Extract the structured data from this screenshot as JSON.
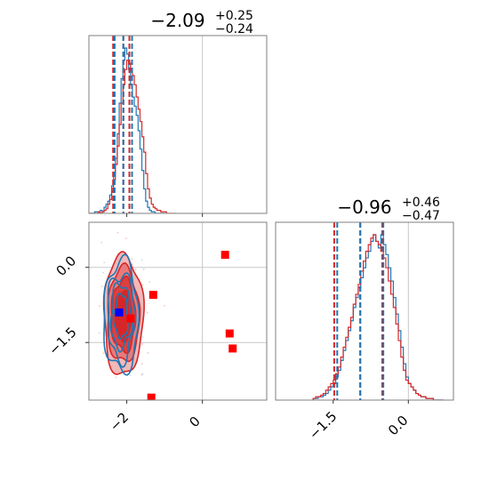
{
  "chart_data": {
    "type": "corner",
    "titles": [
      {
        "value": "−2.09",
        "plus": "+0.25",
        "minus": "−0.24"
      },
      {
        "value": "−0.96",
        "plus": "+0.46",
        "minus": "−0.47"
      }
    ],
    "series": [
      {
        "color": "#1f77b4"
      },
      {
        "color": "#d62728"
      }
    ],
    "param_ranges": [
      [
        -3.0,
        1.7
      ],
      [
        -2.65,
        0.9
      ]
    ],
    "ticks_p1": [
      {
        "value": -2,
        "label": "−2"
      },
      {
        "value": 0,
        "label": "0"
      }
    ],
    "ticks_p2": [
      {
        "value": -1.5,
        "label": "−1.5"
      },
      {
        "value": 0.0,
        "label": "0.0"
      }
    ],
    "grid": true,
    "hist_p1": {
      "bin_start": -3.0,
      "bin_width": 0.05,
      "blue": [
        0,
        0,
        0,
        1,
        1,
        0,
        2,
        1,
        4,
        6,
        8,
        12,
        18,
        26,
        36,
        52,
        72,
        88,
        100,
        108,
        104,
        94,
        84,
        76,
        70,
        64,
        54,
        42,
        28,
        16,
        8,
        4,
        2,
        1,
        1,
        0,
        0,
        0,
        0,
        0
      ],
      "red": [
        0,
        0,
        0,
        0,
        0,
        1,
        0,
        1,
        2,
        3,
        6,
        9,
        14,
        22,
        32,
        44,
        58,
        72,
        84,
        94,
        100,
        98,
        94,
        90,
        84,
        76,
        68,
        60,
        50,
        40,
        26,
        16,
        10,
        6,
        4,
        3,
        2,
        2,
        1,
        1,
        1,
        0,
        0,
        0,
        0,
        0
      ]
    },
    "quantiles_p1": {
      "blue": [
        -2.32,
        -2.09,
        -1.86
      ],
      "red": [
        -2.36,
        -2.09,
        -1.93
      ]
    },
    "hist_p2": {
      "bin_start": -1.9,
      "bin_width": 0.05,
      "blue": [
        1,
        1,
        2,
        2,
        3,
        4,
        6,
        8,
        10,
        14,
        18,
        24,
        30,
        36,
        42,
        48,
        56,
        62,
        68,
        74,
        80,
        86,
        90,
        96,
        100,
        96,
        92,
        100,
        94,
        88,
        80,
        72,
        62,
        52,
        42,
        32,
        22,
        14,
        10,
        8,
        6,
        4,
        3,
        2,
        2,
        1,
        1,
        1,
        0,
        0,
        0,
        0
      ],
      "red": [
        1,
        2,
        2,
        3,
        4,
        6,
        8,
        10,
        12,
        16,
        20,
        26,
        32,
        38,
        44,
        50,
        58,
        64,
        70,
        78,
        84,
        90,
        94,
        98,
        100,
        96,
        94,
        90,
        86,
        80,
        72,
        64,
        56,
        46,
        36,
        26,
        18,
        12,
        10,
        8,
        6,
        4,
        3,
        2,
        2,
        1,
        1,
        1,
        0,
        0,
        0,
        0
      ]
    },
    "quantiles_p2": {
      "blue": [
        -1.42,
        -0.96,
        -0.5
      ],
      "red": [
        -1.48,
        -0.96,
        -0.52
      ]
    },
    "markers": [
      {
        "x": 0.6,
        "y": 0.25,
        "color": "#ff0000"
      },
      {
        "x": -1.3,
        "y": -0.55,
        "color": "#ff0000"
      },
      {
        "x": -1.9,
        "y": -1.02,
        "color": "#ff0000"
      },
      {
        "x": 0.72,
        "y": -1.32,
        "color": "#ff0000"
      },
      {
        "x": 0.8,
        "y": -1.62,
        "color": "#ff0000"
      },
      {
        "x": -1.35,
        "y": -2.6,
        "color": "#ff0000"
      },
      {
        "x": -2.2,
        "y": -0.9,
        "color": "#0000ff"
      }
    ]
  }
}
